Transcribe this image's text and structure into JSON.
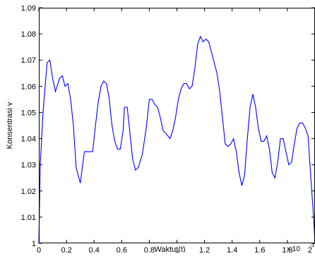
{
  "chart_data": {
    "type": "line",
    "title": "",
    "xlabel": "Waktu (t)",
    "ylabel": "Konsentrasi v",
    "x_multiplier_label": "x 10",
    "x_multiplier_exponent": "-3",
    "xlim": [
      0,
      2
    ],
    "ylim": [
      1,
      1.09
    ],
    "xticks": [
      0,
      0.2,
      0.4,
      0.6,
      0.8,
      1,
      1.2,
      1.4,
      1.6,
      1.8,
      2
    ],
    "xtick_labels": [
      "0",
      "0.2",
      "0.4",
      "0.6",
      "0.8",
      "1",
      "1.2",
      "1.4",
      "1.6",
      "1.8",
      "2"
    ],
    "yticks": [
      1,
      1.01,
      1.02,
      1.03,
      1.04,
      1.05,
      1.06,
      1.07,
      1.08,
      1.09
    ],
    "ytick_labels": [
      "1",
      "1.01",
      "1.02",
      "1.03",
      "1.04",
      "1.05",
      "1.06",
      "1.07",
      "1.08",
      "1.09"
    ],
    "grid": false,
    "line_color": "#0000ff",
    "series": [
      {
        "x": [
          0,
          0.01,
          0.03,
          0.06,
          0.08,
          0.1,
          0.12,
          0.15,
          0.17,
          0.19,
          0.21,
          0.23,
          0.25,
          0.27,
          0.3,
          0.33,
          0.36,
          0.39,
          0.41,
          0.43,
          0.45,
          0.47,
          0.49,
          0.51,
          0.53,
          0.55,
          0.57,
          0.59,
          0.61,
          0.62,
          0.64,
          0.66,
          0.68,
          0.7,
          0.72,
          0.75,
          0.78,
          0.8,
          0.82,
          0.84,
          0.86,
          0.88,
          0.9,
          0.92,
          0.95,
          0.97,
          0.99,
          1.01,
          1.03,
          1.05,
          1.07,
          1.09,
          1.11,
          1.13,
          1.15,
          1.17,
          1.19,
          1.21,
          1.23,
          1.25,
          1.27,
          1.29,
          1.31,
          1.33,
          1.35,
          1.37,
          1.39,
          1.41,
          1.43,
          1.45,
          1.47,
          1.49,
          1.51,
          1.53,
          1.55,
          1.57,
          1.59,
          1.61,
          1.63,
          1.65,
          1.67,
          1.69,
          1.71,
          1.73,
          1.75,
          1.77,
          1.79,
          1.81,
          1.83,
          1.85,
          1.87,
          1.89,
          1.91,
          1.93,
          1.95,
          1.97,
          1.99,
          2
        ],
        "y": [
          1.0,
          1.03,
          1.05,
          1.069,
          1.07,
          1.063,
          1.058,
          1.063,
          1.064,
          1.06,
          1.061,
          1.055,
          1.045,
          1.029,
          1.023,
          1.035,
          1.035,
          1.035,
          1.045,
          1.054,
          1.06,
          1.062,
          1.061,
          1.055,
          1.045,
          1.039,
          1.036,
          1.036,
          1.043,
          1.052,
          1.052,
          1.042,
          1.032,
          1.028,
          1.029,
          1.034,
          1.045,
          1.055,
          1.055,
          1.053,
          1.052,
          1.048,
          1.043,
          1.042,
          1.04,
          1.043,
          1.048,
          1.055,
          1.059,
          1.061,
          1.061,
          1.059,
          1.06,
          1.067,
          1.076,
          1.079,
          1.077,
          1.078,
          1.077,
          1.073,
          1.069,
          1.065,
          1.058,
          1.048,
          1.038,
          1.037,
          1.038,
          1.04,
          1.035,
          1.027,
          1.022,
          1.026,
          1.04,
          1.052,
          1.057,
          1.052,
          1.044,
          1.039,
          1.039,
          1.041,
          1.036,
          1.027,
          1.025,
          1.031,
          1.04,
          1.04,
          1.035,
          1.03,
          1.031,
          1.038,
          1.044,
          1.046,
          1.046,
          1.044,
          1.041,
          1.025,
          1.01,
          1.0
        ]
      }
    ]
  }
}
